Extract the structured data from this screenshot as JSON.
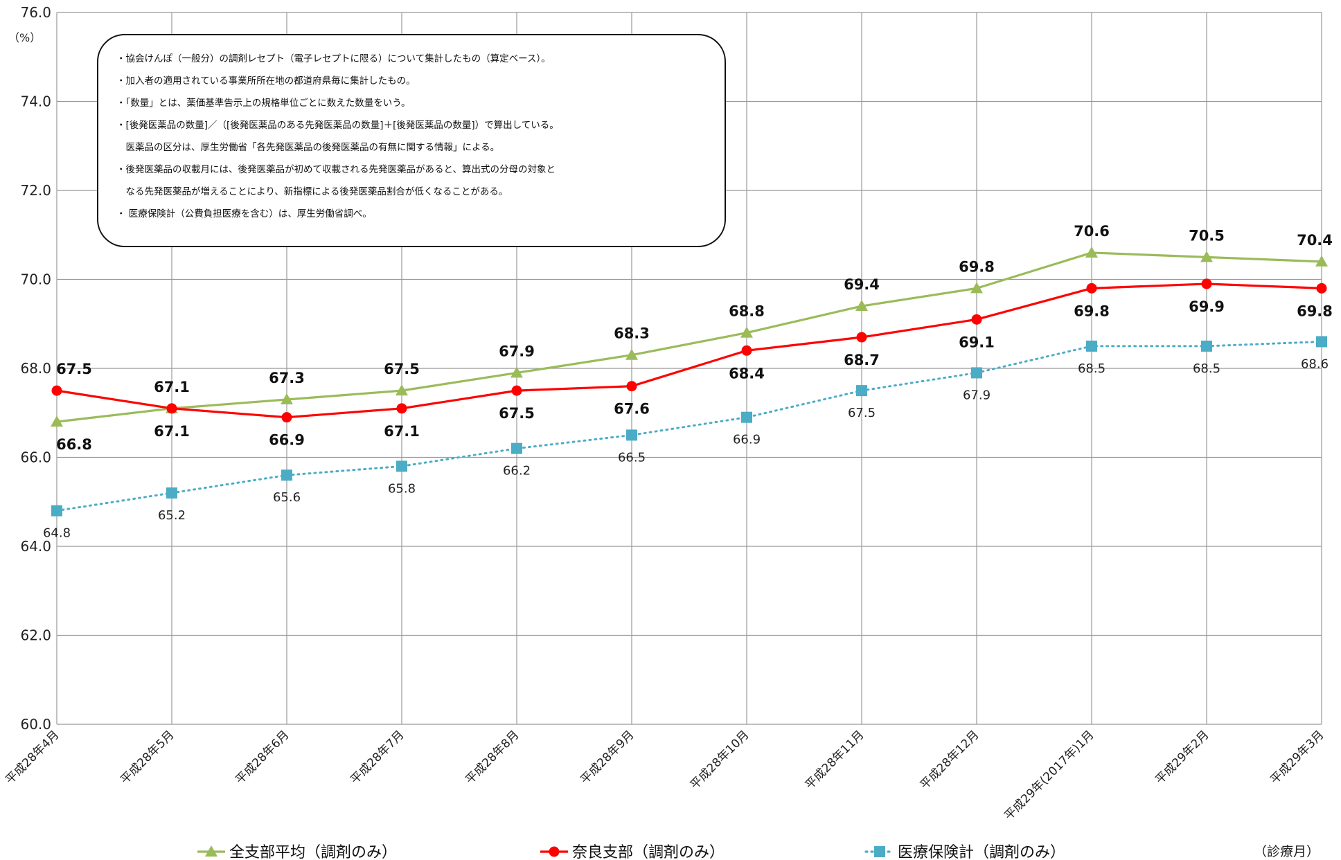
{
  "chart_data": {
    "type": "line",
    "y_unit": "（%）",
    "x_unit": "（診療月）",
    "ylim": [
      60.0,
      76.0
    ],
    "y_ticks": [
      "60.0",
      "62.0",
      "64.0",
      "66.0",
      "68.0",
      "70.0",
      "72.0",
      "74.0",
      "76.0"
    ],
    "grid": true,
    "legend_position": "bottom",
    "categories": [
      "平成28年4月",
      "平成28年5月",
      "平成28年6月",
      "平成28年7月",
      "平成28年8月",
      "平成28年9月",
      "平成28年10月",
      "平成28年11月",
      "平成28年12月",
      "平成29年(2017年)1月",
      "平成29年2月",
      "平成29年3月"
    ],
    "series": [
      {
        "name": "全支部平均（調剤のみ）",
        "color": "#9BBB59",
        "marker": "triangle",
        "line": "solid",
        "values": [
          66.8,
          67.1,
          67.3,
          67.5,
          67.9,
          68.3,
          68.8,
          69.4,
          69.8,
          70.6,
          70.5,
          70.4
        ]
      },
      {
        "name": "奈良支部（調剤のみ）",
        "color": "#FF0000",
        "marker": "circle",
        "line": "solid",
        "values": [
          67.5,
          67.1,
          66.9,
          67.1,
          67.5,
          67.6,
          68.4,
          68.7,
          69.1,
          69.8,
          69.9,
          69.8
        ]
      },
      {
        "name": "医療保険計（調剤のみ）",
        "color": "#4BACC6",
        "marker": "square",
        "line": "dotted",
        "values": [
          64.8,
          65.2,
          65.6,
          65.8,
          66.2,
          66.5,
          66.9,
          67.5,
          67.9,
          68.5,
          68.5,
          68.6
        ]
      }
    ],
    "annotations": [
      "・協会けんぽ（一般分）の調剤レセプト（電子レセプトに限る）について集計したもの（算定ベース）。",
      "・加入者の適用されている事業所所在地の都道府県毎に集計したもの。",
      "・「数量」とは、薬価基準告示上の規格単位ごとに数えた数量をいう。",
      "・[後発医薬品の数量]／（[後発医薬品のある先発医薬品の数量]＋[後発医薬品の数量]）で算出している。",
      "　医薬品の区分は、厚生労働省「各先発医薬品の後発医薬品の有無に関する情報」による。",
      "・後発医薬品の収載月には、後発医薬品が初めて収載される先発医薬品があると、算出式の分母の対象と",
      "　なる先発医薬品が増えることにより、新指標による後発医薬品割合が低くなることがある。",
      "・ 医療保険計（公費負担医療を含む）は、厚生労働省調べ。"
    ]
  }
}
